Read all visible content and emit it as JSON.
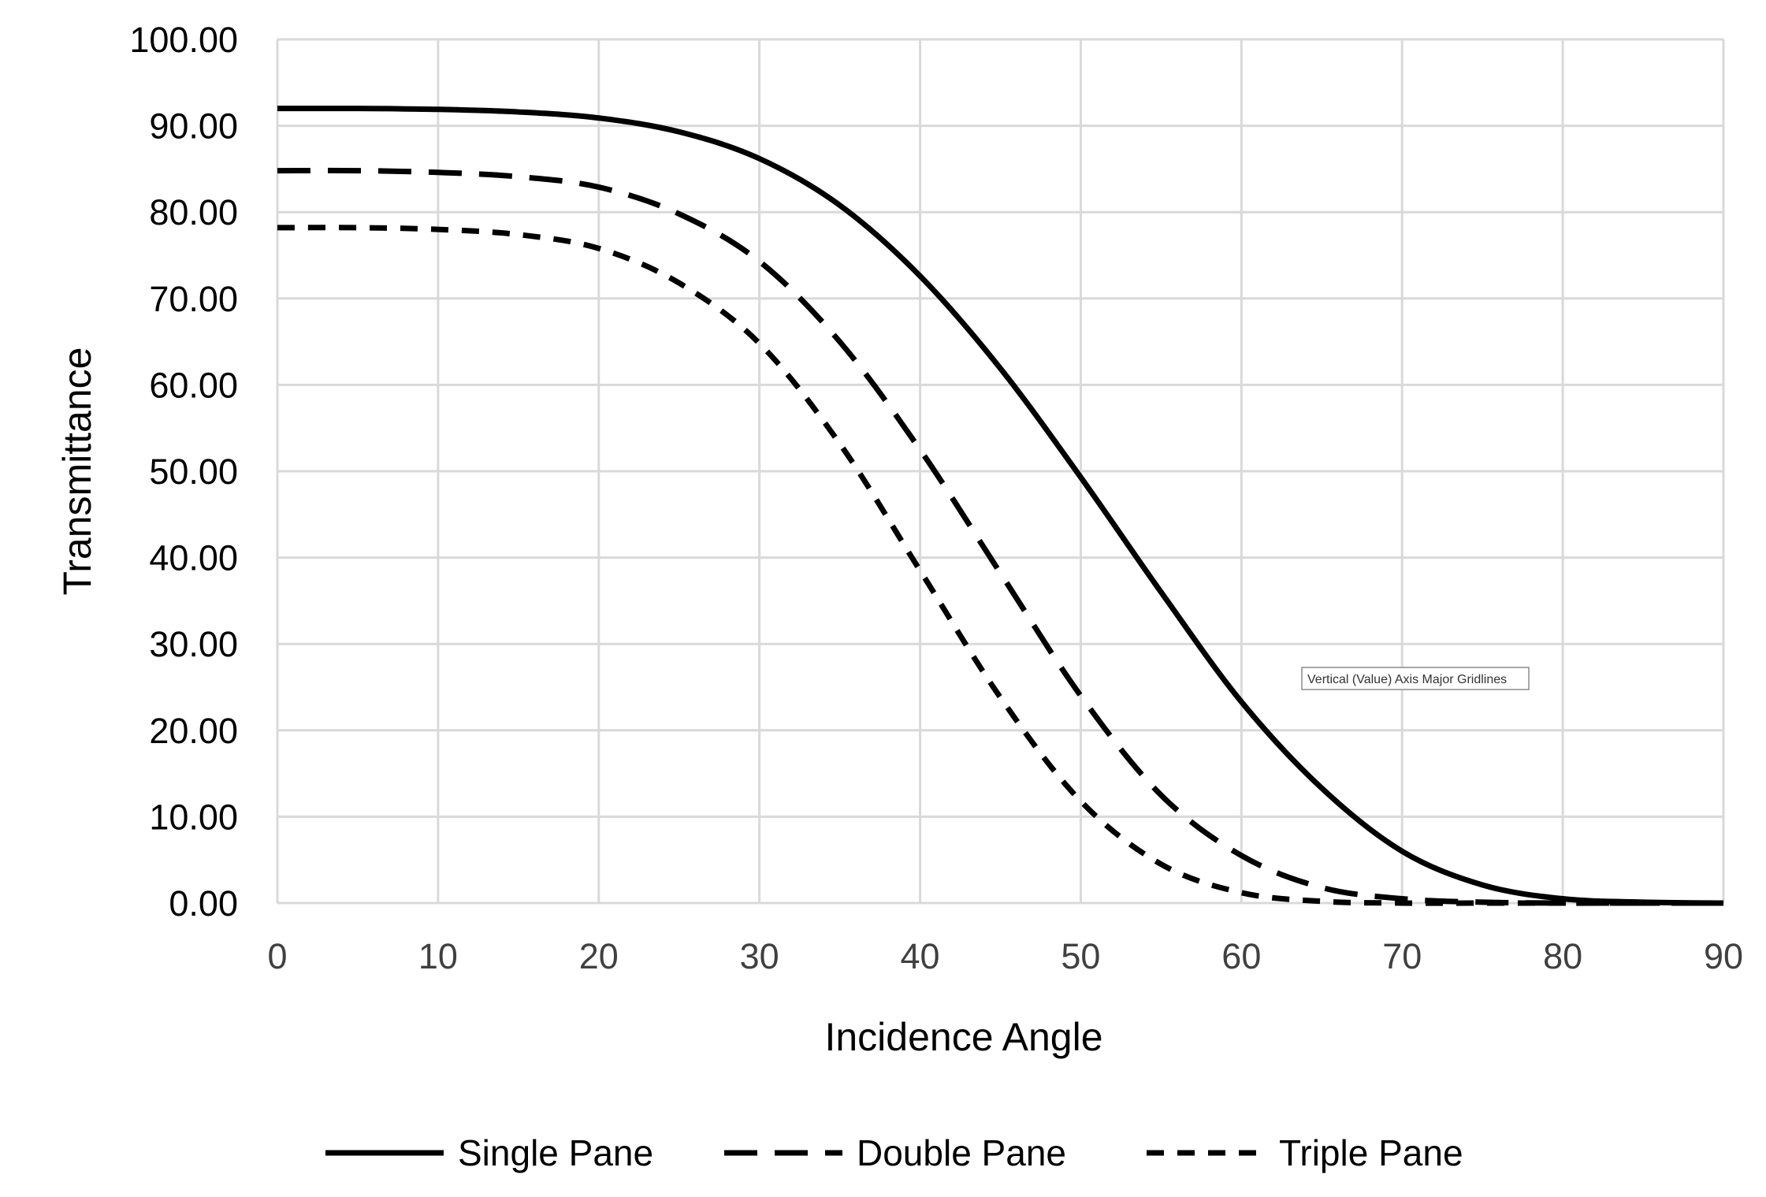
{
  "chart_data": {
    "type": "line",
    "title": "",
    "xlabel": "Incidence Angle",
    "ylabel": "Transmittance",
    "xlim": [
      0,
      90
    ],
    "ylim": [
      0,
      100
    ],
    "x_ticks": [
      "0",
      "10",
      "20",
      "30",
      "40",
      "50",
      "60",
      "70",
      "80",
      "90"
    ],
    "y_ticks": [
      "0.00",
      "10.00",
      "20.00",
      "30.00",
      "40.00",
      "50.00",
      "60.00",
      "70.00",
      "80.00",
      "90.00",
      "100.00"
    ],
    "grid": true,
    "legend_position": "bottom",
    "x": [
      0,
      5,
      10,
      15,
      20,
      25,
      30,
      35,
      40,
      45,
      50,
      55,
      60,
      65,
      70,
      75,
      80,
      85,
      90
    ],
    "series": [
      {
        "name": "Single Pane",
        "style": "solid",
        "values": [
          92.0,
          92.0,
          91.9,
          91.6,
          90.9,
          89.3,
          86.2,
          80.8,
          72.6,
          61.9,
          49.3,
          36.0,
          23.3,
          13.3,
          6.0,
          2.1,
          0.5,
          0.1,
          0.0
        ]
      },
      {
        "name": "Double Pane",
        "style": "long-dash",
        "values": [
          84.8,
          84.8,
          84.6,
          84.1,
          82.9,
          79.8,
          74.3,
          65.0,
          52.5,
          38.2,
          24.0,
          12.5,
          5.5,
          1.8,
          0.5,
          0.1,
          0.0,
          0.0,
          0.0
        ]
      },
      {
        "name": "Triple Pane",
        "style": "short-dash",
        "values": [
          78.2,
          78.2,
          78.0,
          77.4,
          75.8,
          71.8,
          64.8,
          53.2,
          38.5,
          23.8,
          11.8,
          4.5,
          1.2,
          0.2,
          0.0,
          0.0,
          0.0,
          0.0,
          0.0
        ]
      }
    ],
    "tooltip": "Vertical (Value) Axis Major Gridlines",
    "colors": {
      "line": "#000000",
      "grid": "#d9d9d9"
    }
  }
}
